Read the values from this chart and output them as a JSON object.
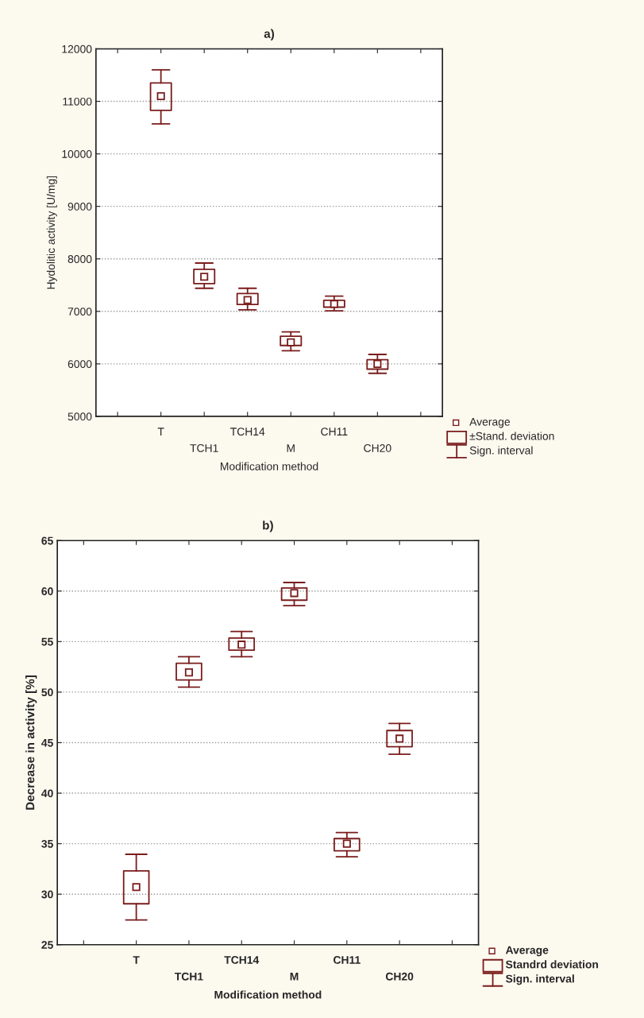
{
  "chart_data": [
    {
      "type": "box",
      "title": "a)",
      "xlabel": "Modification method",
      "ylabel": "Hydolitic activity [U/mg]",
      "categories": [
        "T",
        "TCH1",
        "TCH14",
        "M",
        "CH11",
        "CH20"
      ],
      "boxes": [
        {
          "low": 10570,
          "q1": 10830,
          "median": 11100,
          "q3": 11350,
          "high": 11600
        },
        {
          "low": 7440,
          "q1": 7530,
          "median": 7660,
          "q3": 7800,
          "high": 7920
        },
        {
          "low": 7030,
          "q1": 7130,
          "median": 7215,
          "q3": 7340,
          "high": 7440
        },
        {
          "low": 6250,
          "q1": 6350,
          "median": 6410,
          "q3": 6525,
          "high": 6610
        },
        {
          "low": 7010,
          "q1": 7080,
          "median": 7140,
          "q3": 7210,
          "high": 7290
        },
        {
          "low": 5820,
          "q1": 5900,
          "median": 6000,
          "q3": 6080,
          "high": 6180
        }
      ],
      "color": "#7a1c1c",
      "ylim": [
        5000,
        12000
      ],
      "yticks": [
        5000,
        6000,
        7000,
        8000,
        9000,
        10000,
        11000,
        12000
      ],
      "grid": "y",
      "marker": "square",
      "annotations": [
        "Average",
        "±Stand. deviation",
        "Sign. interval"
      ]
    },
    {
      "type": "box",
      "title": "b)",
      "xlabel": "Modification method",
      "ylabel": "Decrease in activity [%]",
      "categories": [
        "T",
        "TCH1",
        "TCH14",
        "M",
        "CH11",
        "CH20"
      ],
      "boxes": [
        {
          "low": 27.45,
          "q1": 29.05,
          "median": 30.7,
          "q3": 32.3,
          "high": 33.95
        },
        {
          "low": 50.5,
          "q1": 51.2,
          "median": 51.95,
          "q3": 52.85,
          "high": 53.5
        },
        {
          "low": 53.5,
          "q1": 54.15,
          "median": 54.7,
          "q3": 55.35,
          "high": 56.0
        },
        {
          "low": 58.55,
          "q1": 59.1,
          "median": 59.8,
          "q3": 60.3,
          "high": 60.85
        },
        {
          "low": 33.7,
          "q1": 34.3,
          "median": 35.0,
          "q3": 35.5,
          "high": 36.1
        },
        {
          "low": 43.85,
          "q1": 44.6,
          "median": 45.4,
          "q3": 46.2,
          "high": 46.9
        }
      ],
      "color": "#7a1c1c",
      "ylim": [
        25,
        65
      ],
      "yticks": [
        25,
        30,
        35,
        40,
        45,
        50,
        55,
        60,
        65
      ],
      "grid": "y",
      "marker": "square",
      "annotations": [
        "Average",
        "Standrd deviation",
        "Sign. interval"
      ]
    }
  ]
}
